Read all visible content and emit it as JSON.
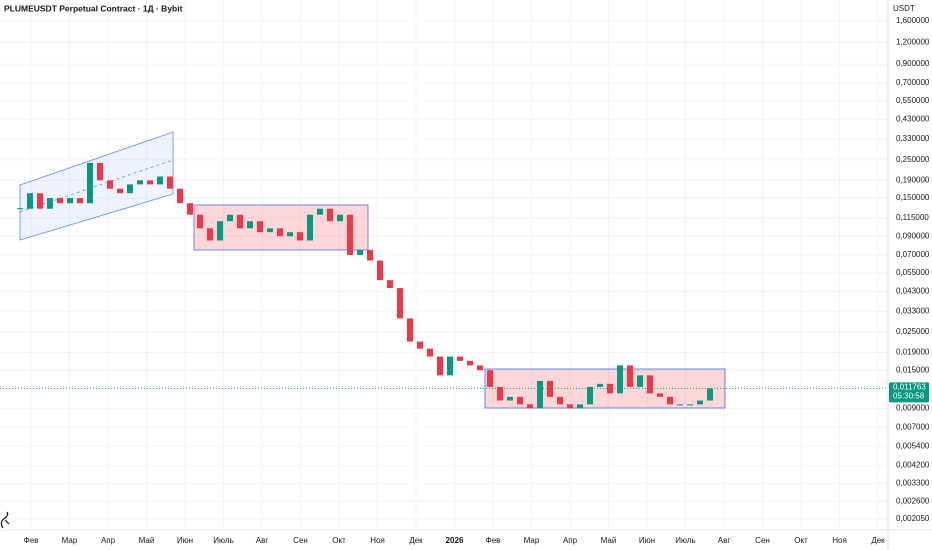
{
  "chart_data": {
    "type": "candlestick",
    "title": "PLUMEUSDT Perpetual Contract · 1Д · Bybit",
    "axis_unit": "USDT",
    "log_scale": true,
    "grid": true,
    "up_color": "#089981",
    "down_color": "#f23645",
    "ylim": [
      0.00177,
      2.12
    ],
    "yticks": [
      {
        "value": 1.6,
        "label": "1,600000"
      },
      {
        "value": 1.2,
        "label": "1,200000"
      },
      {
        "value": 0.9,
        "label": "0,900000"
      },
      {
        "value": 0.7,
        "label": "0,700000"
      },
      {
        "value": 0.55,
        "label": "0,550000"
      },
      {
        "value": 0.43,
        "label": "0,430000"
      },
      {
        "value": 0.33,
        "label": "0,330000"
      },
      {
        "value": 0.25,
        "label": "0,250000"
      },
      {
        "value": 0.19,
        "label": "0,190000"
      },
      {
        "value": 0.15,
        "label": "0,150000"
      },
      {
        "value": 0.115,
        "label": "0,115000"
      },
      {
        "value": 0.09,
        "label": "0,090000"
      },
      {
        "value": 0.07,
        "label": "0,070000"
      },
      {
        "value": 0.055,
        "label": "0,055000"
      },
      {
        "value": 0.043,
        "label": "0,043000"
      },
      {
        "value": 0.033,
        "label": "0,033000"
      },
      {
        "value": 0.025,
        "label": "0,025000"
      },
      {
        "value": 0.019,
        "label": "0,019000"
      },
      {
        "value": 0.015,
        "label": "0,015000"
      },
      {
        "value": 0.009,
        "label": "0,009000"
      },
      {
        "value": 0.007,
        "label": "0,007000"
      },
      {
        "value": 0.0054,
        "label": "0,005400"
      },
      {
        "value": 0.0042,
        "label": "0,004200"
      },
      {
        "value": 0.0033,
        "label": "0,003300"
      },
      {
        "value": 0.0026,
        "label": "0,002600"
      },
      {
        "value": 0.00205,
        "label": "0,002050"
      }
    ],
    "xticks": [
      "Фев",
      "Мар",
      "Апр",
      "Май",
      "Июн",
      "Июль",
      "Авг",
      "Сен",
      "Окт",
      "Ноя",
      "Дек",
      "2026",
      "Фев",
      "Мар",
      "Апр",
      "Май",
      "Июн",
      "Июль",
      "Авг",
      "Сен",
      "Окт",
      "Ноя",
      "Дек"
    ],
    "values": [
      0.13,
      0.16,
      0.13,
      0.15,
      0.14,
      0.15,
      0.14,
      0.24,
      0.19,
      0.17,
      0.16,
      0.18,
      0.19,
      0.18,
      0.2,
      0.17,
      0.14,
      0.12,
      0.1,
      0.085,
      0.11,
      0.12,
      0.1,
      0.11,
      0.095,
      0.1,
      0.09,
      0.095,
      0.085,
      0.12,
      0.13,
      0.11,
      0.12,
      0.07,
      0.075,
      0.065,
      0.05,
      0.045,
      0.03,
      0.022,
      0.02,
      0.018,
      0.014,
      0.018,
      0.017,
      0.016,
      0.015,
      0.012,
      0.01,
      0.0105,
      0.0095,
      0.009,
      0.013,
      0.0105,
      0.0095,
      0.009,
      0.0095,
      0.012,
      0.0125,
      0.011,
      0.016,
      0.012,
      0.014,
      0.011,
      0.0105,
      0.0095,
      0.0095,
      0.0095,
      0.01,
      0.011763
    ],
    "last_price": {
      "value": 0.011763,
      "label": "0,011763"
    },
    "countdown": "05:30:58"
  }
}
